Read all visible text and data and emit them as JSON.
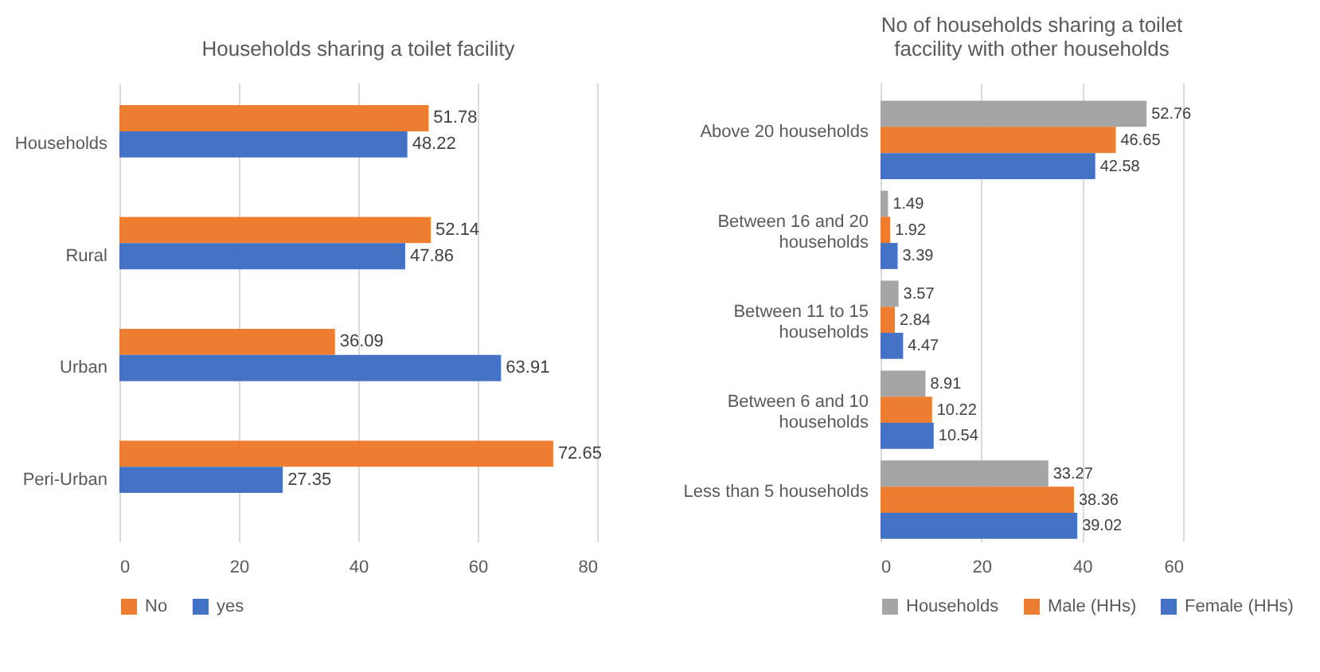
{
  "chart_data": [
    {
      "type": "bar",
      "orientation": "horizontal",
      "title": "Households sharing a toilet facility",
      "categories": [
        "Households",
        "Rural",
        "Urban",
        "Peri-Urban"
      ],
      "series": [
        {
          "name": "No",
          "color": "#ed7d31",
          "values": [
            51.78,
            52.14,
            36.09,
            72.65
          ]
        },
        {
          "name": "yes",
          "color": "#4472c4",
          "values": [
            48.22,
            47.86,
            63.91,
            27.35
          ]
        }
      ],
      "xlim": [
        0,
        80
      ],
      "xticks": [
        0,
        20,
        40,
        60,
        80
      ],
      "grid": "x",
      "legend": "bottom",
      "data_labels": true
    },
    {
      "type": "bar",
      "orientation": "horizontal",
      "title": "No of households sharing a toilet faccility with other households",
      "categories": [
        "Above 20 households",
        "Between 16 and 20 households",
        "Between 11 to 15 households",
        "Between 6 and 10 households",
        "Less than 5 households"
      ],
      "series": [
        {
          "name": "Households",
          "color": "#a5a5a5",
          "values": [
            52.76,
            1.49,
            3.57,
            8.91,
            33.27
          ]
        },
        {
          "name": "Male (HHs)",
          "color": "#ed7d31",
          "values": [
            46.65,
            1.92,
            2.84,
            10.22,
            38.36
          ]
        },
        {
          "name": "Female (HHs)",
          "color": "#4472c4",
          "values": [
            42.58,
            3.39,
            4.47,
            10.54,
            39.02
          ]
        }
      ],
      "xlim": [
        0,
        60
      ],
      "xticks": [
        0,
        20,
        40,
        60
      ],
      "grid": "x",
      "legend": "bottom",
      "data_labels": true
    }
  ]
}
